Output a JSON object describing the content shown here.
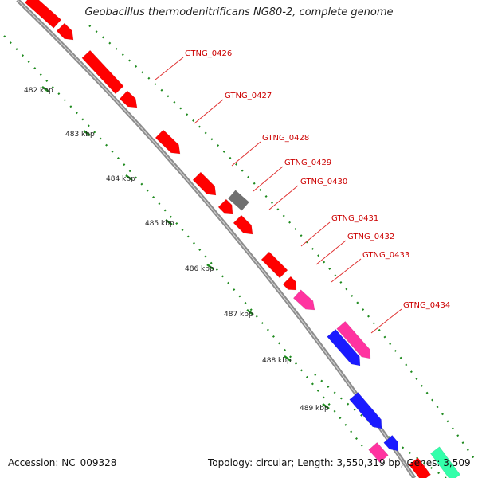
{
  "title": "Geobacillus thermodenitrificans NG80-2, complete genome",
  "footer": {
    "accession": "Accession: NC_009328",
    "summary": "Topology: circular; Length: 3,550,319 bp; Genes: 3,509"
  },
  "colors": {
    "backbone": "#8c8c8c",
    "gene_default": "#ff0000",
    "gene_gray": "#707070",
    "gene_pink": "#ff33a0",
    "gene_blue": "#1a1aff",
    "gene_teal": "#33ffaa",
    "tick": "#1e8a1e",
    "label": "#cc0000",
    "leader": "#e03030"
  },
  "ticks": [
    "482 kbp",
    "483 kbp",
    "484 kbp",
    "485 kbp",
    "486 kbp",
    "487 kbp",
    "488 kbp",
    "489 kbp"
  ],
  "gene_labels": [
    "GTNG_0426",
    "GTNG_0427",
    "GTNG_0428",
    "GTNG_0429",
    "GTNG_0430",
    "GTNG_0431",
    "GTNG_0432",
    "GTNG_0433",
    "GTNG_0434"
  ],
  "genes": [
    {
      "color": "gene_default"
    },
    {
      "color": "gene_default"
    },
    {
      "color": "gene_default"
    },
    {
      "color": "gene_default"
    },
    {
      "color": "gene_default"
    },
    {
      "color": "gene_gray"
    },
    {
      "color": "gene_default"
    },
    {
      "color": "gene_default"
    },
    {
      "color": "gene_default"
    },
    {
      "color": "gene_default"
    },
    {
      "color": "gene_default"
    },
    {
      "color": "gene_pink"
    },
    {
      "color": "gene_default"
    },
    {
      "color": "gene_blue"
    },
    {
      "color": "gene_blue"
    },
    {
      "color": "gene_pink"
    },
    {
      "color": "gene_teal"
    },
    {
      "color": "gene_default"
    }
  ]
}
